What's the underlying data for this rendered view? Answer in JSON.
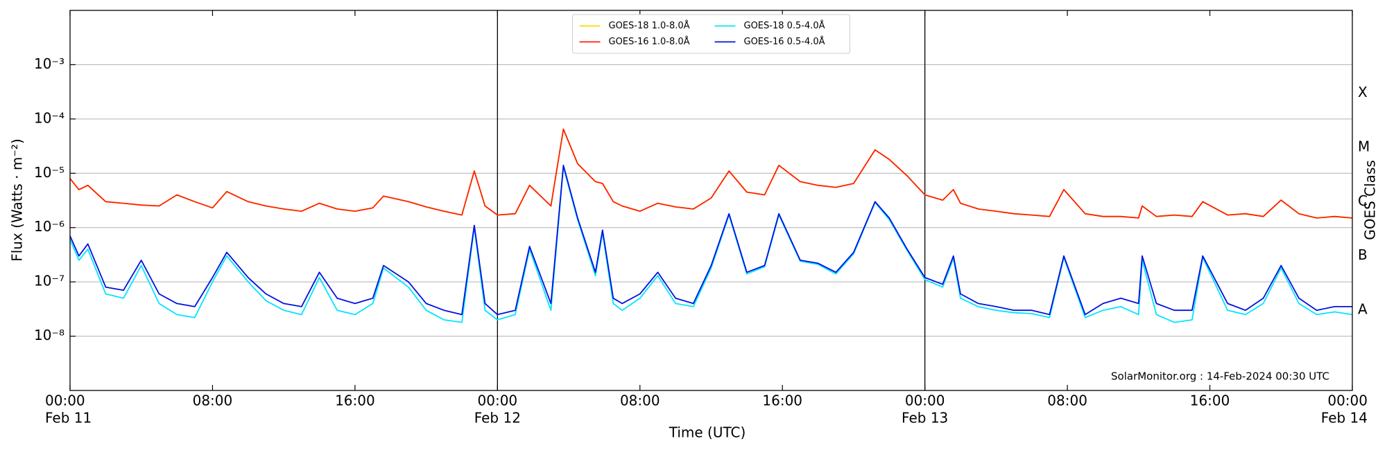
{
  "chart_data": {
    "type": "line",
    "yscale": "log",
    "grid": true,
    "legend_loc": "upper center",
    "x_label": "Time (UTC)",
    "y_label": "Flux (Watts · m⁻²)",
    "y2_label": "GOES Class",
    "annotation": "SolarMonitor.org : 14-Feb-2024 00:30 UTC",
    "xlim": [
      0,
      72
    ],
    "ylim": [
      1e-09,
      0.01
    ],
    "xticks": [
      {
        "value": 0,
        "label": "00:00"
      },
      {
        "value": 8,
        "label": "08:00"
      },
      {
        "value": 16,
        "label": "16:00"
      },
      {
        "value": 24,
        "label": "00:00"
      },
      {
        "value": 32,
        "label": "08:00"
      },
      {
        "value": 40,
        "label": "16:00"
      },
      {
        "value": 48,
        "label": "00:00"
      },
      {
        "value": 56,
        "label": "08:00"
      },
      {
        "value": 64,
        "label": "16:00"
      },
      {
        "value": 72,
        "label": "00:00"
      }
    ],
    "date_ticks": [
      {
        "value": 0,
        "label": "Feb 11"
      },
      {
        "value": 24,
        "label": "Feb 12"
      },
      {
        "value": 48,
        "label": "Feb 13"
      },
      {
        "value": 72,
        "label": "Feb 14"
      }
    ],
    "vlines": [
      24,
      48
    ],
    "yticks": [
      {
        "value": 1e-08,
        "label": "10⁻⁸"
      },
      {
        "value": 1e-07,
        "label": "10⁻⁷"
      },
      {
        "value": 1e-06,
        "label": "10⁻⁶"
      },
      {
        "value": 1e-05,
        "label": "10⁻⁵"
      },
      {
        "value": 0.0001,
        "label": "10⁻⁴"
      },
      {
        "value": 0.001,
        "label": "10⁻³"
      }
    ],
    "class_ticks": [
      {
        "value": 3e-08,
        "label": "A"
      },
      {
        "value": 3e-07,
        "label": "B"
      },
      {
        "value": 3e-06,
        "label": "C"
      },
      {
        "value": 3e-05,
        "label": "M"
      },
      {
        "value": 0.0003,
        "label": "X"
      }
    ],
    "x": [
      0,
      0.5,
      1,
      2,
      3,
      4,
      5,
      6,
      7,
      8,
      8.8,
      10,
      11,
      12,
      13,
      14,
      15,
      16,
      17,
      17.6,
      19,
      20,
      21,
      22,
      22.7,
      23.3,
      24,
      25,
      25.8,
      27,
      27.7,
      28.5,
      29.5,
      29.9,
      30.5,
      31,
      32,
      33,
      34,
      35,
      36,
      37,
      38,
      39,
      39.8,
      41,
      42,
      43,
      44,
      45.2,
      46,
      47,
      48,
      49,
      49.6,
      50,
      51,
      52,
      53,
      54,
      55,
      55.8,
      57,
      58,
      59,
      60,
      60.2,
      61,
      62,
      63,
      63.6,
      65,
      66,
      67,
      68,
      69,
      70,
      71,
      72
    ],
    "series": [
      {
        "name": "GOES-18 1.0-8.0Å",
        "color": "#ffd700",
        "values": [
          8e-06,
          5e-06,
          6e-06,
          3e-06,
          2.8e-06,
          2.6e-06,
          2.5e-06,
          4e-06,
          3e-06,
          2.3e-06,
          4.6e-06,
          3e-06,
          2.5e-06,
          2.2e-06,
          2e-06,
          2.8e-06,
          2.2e-06,
          2e-06,
          2.3e-06,
          3.8e-06,
          3e-06,
          2.4e-06,
          2e-06,
          1.7e-06,
          1.1e-05,
          2.5e-06,
          1.7e-06,
          1.8e-06,
          6e-06,
          2.5e-06,
          6.5e-05,
          1.5e-05,
          7e-06,
          6.5e-06,
          3e-06,
          2.5e-06,
          2e-06,
          2.8e-06,
          2.4e-06,
          2.2e-06,
          3.5e-06,
          1.1e-05,
          4.5e-06,
          4e-06,
          1.4e-05,
          7e-06,
          6e-06,
          5.5e-06,
          6.5e-06,
          2.7e-05,
          1.8e-05,
          9e-06,
          4e-06,
          3.2e-06,
          5e-06,
          2.8e-06,
          2.2e-06,
          2e-06,
          1.8e-06,
          1.7e-06,
          1.6e-06,
          5e-06,
          1.8e-06,
          1.6e-06,
          1.6e-06,
          1.5e-06,
          2.5e-06,
          1.6e-06,
          1.7e-06,
          1.6e-06,
          3e-06,
          1.7e-06,
          1.8e-06,
          1.6e-06,
          3.2e-06,
          1.8e-06,
          1.5e-06,
          1.6e-06,
          1.5e-06
        ]
      },
      {
        "name": "GOES-16 1.0-8.0Å",
        "color": "#ff2000",
        "values": [
          8e-06,
          5e-06,
          6e-06,
          3e-06,
          2.8e-06,
          2.6e-06,
          2.5e-06,
          4e-06,
          3e-06,
          2.3e-06,
          4.6e-06,
          3e-06,
          2.5e-06,
          2.2e-06,
          2e-06,
          2.8e-06,
          2.2e-06,
          2e-06,
          2.3e-06,
          3.8e-06,
          3e-06,
          2.4e-06,
          2e-06,
          1.7e-06,
          1.1e-05,
          2.5e-06,
          1.7e-06,
          1.8e-06,
          6e-06,
          2.5e-06,
          6.5e-05,
          1.5e-05,
          7e-06,
          6.5e-06,
          3e-06,
          2.5e-06,
          2e-06,
          2.8e-06,
          2.4e-06,
          2.2e-06,
          3.5e-06,
          1.1e-05,
          4.5e-06,
          4e-06,
          1.4e-05,
          7e-06,
          6e-06,
          5.5e-06,
          6.5e-06,
          2.7e-05,
          1.8e-05,
          9e-06,
          4e-06,
          3.2e-06,
          5e-06,
          2.8e-06,
          2.2e-06,
          2e-06,
          1.8e-06,
          1.7e-06,
          1.6e-06,
          5e-06,
          1.8e-06,
          1.6e-06,
          1.6e-06,
          1.5e-06,
          2.5e-06,
          1.6e-06,
          1.7e-06,
          1.6e-06,
          3e-06,
          1.7e-06,
          1.8e-06,
          1.6e-06,
          3.2e-06,
          1.8e-06,
          1.5e-06,
          1.6e-06,
          1.5e-06
        ]
      },
      {
        "name": "GOES-18 0.5-4.0Å",
        "color": "#00e5ff",
        "values": [
          6e-07,
          2.5e-07,
          4e-07,
          6e-08,
          5e-08,
          2e-07,
          4e-08,
          2.5e-08,
          2.2e-08,
          1e-07,
          3e-07,
          1e-07,
          4.5e-08,
          3e-08,
          2.5e-08,
          1.2e-07,
          3e-08,
          2.5e-08,
          4e-08,
          1.8e-07,
          8e-08,
          3e-08,
          2e-08,
          1.8e-08,
          1e-06,
          3e-08,
          2e-08,
          2.5e-08,
          4e-07,
          3e-08,
          1.3e-05,
          1.4e-06,
          1.3e-07,
          8e-07,
          4e-08,
          3e-08,
          5e-08,
          1.3e-07,
          4e-08,
          3.5e-08,
          1.8e-07,
          1.7e-06,
          1.4e-07,
          1.9e-07,
          1.7e-06,
          2.4e-07,
          2.1e-07,
          1.4e-07,
          3.3e-07,
          2.9e-06,
          1.4e-06,
          3.8e-07,
          1.1e-07,
          8e-08,
          2.7e-07,
          5e-08,
          3.5e-08,
          3e-08,
          2.7e-08,
          2.6e-08,
          2.2e-08,
          2.8e-07,
          2.2e-08,
          3e-08,
          3.5e-08,
          2.5e-08,
          2.5e-07,
          2.5e-08,
          1.8e-08,
          2e-08,
          2.8e-07,
          3e-08,
          2.5e-08,
          4e-08,
          1.8e-07,
          4e-08,
          2.5e-08,
          2.8e-08,
          2.5e-08
        ]
      },
      {
        "name": "GOES-16 0.5-4.0Å",
        "color": "#0010e0",
        "values": [
          7e-07,
          3e-07,
          5e-07,
          8e-08,
          7e-08,
          2.5e-07,
          6e-08,
          4e-08,
          3.5e-08,
          1.2e-07,
          3.5e-07,
          1.2e-07,
          6e-08,
          4e-08,
          3.5e-08,
          1.5e-07,
          5e-08,
          4e-08,
          5e-08,
          2e-07,
          1e-07,
          4e-08,
          3e-08,
          2.5e-08,
          1.1e-06,
          4e-08,
          2.5e-08,
          3e-08,
          4.5e-07,
          4e-08,
          1.4e-05,
          1.5e-06,
          1.5e-07,
          9e-07,
          5e-08,
          4e-08,
          6e-08,
          1.5e-07,
          5e-08,
          4e-08,
          2e-07,
          1.8e-06,
          1.5e-07,
          2e-07,
          1.8e-06,
          2.5e-07,
          2.2e-07,
          1.5e-07,
          3.5e-07,
          3e-06,
          1.5e-06,
          4e-07,
          1.2e-07,
          9e-08,
          3e-07,
          6e-08,
          4e-08,
          3.5e-08,
          3e-08,
          3e-08,
          2.5e-08,
          3e-07,
          2.5e-08,
          4e-08,
          5e-08,
          4e-08,
          3e-07,
          4e-08,
          3e-08,
          3e-08,
          3e-07,
          4e-08,
          3e-08,
          5e-08,
          2e-07,
          5e-08,
          3e-08,
          3.5e-08,
          3.5e-08
        ]
      }
    ]
  }
}
